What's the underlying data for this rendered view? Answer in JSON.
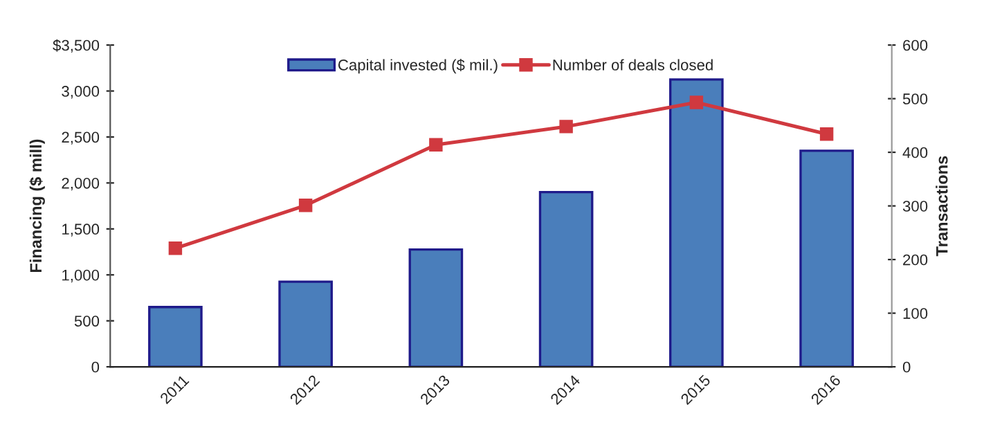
{
  "chart_data": {
    "type": "bar",
    "ylabel": "Financing ($ mill)",
    "y2label": "Transactions",
    "categories": [
      "2011",
      "2012",
      "2013",
      "2014",
      "2015",
      "2016"
    ],
    "series": [
      {
        "name": "Capital invested ($ mil.)",
        "color": "#4a7ebb",
        "values": [
          650,
          925,
          1275,
          1900,
          3125,
          2350
        ]
      },
      {
        "name": "Number of deals closed",
        "type": "line",
        "axis": "y2",
        "color": "#d0393f",
        "values": [
          221,
          301,
          414,
          448,
          493,
          434
        ]
      }
    ],
    "ylim": [
      0,
      3500
    ],
    "yticks": [
      0,
      {
        "value": 500,
        "label": "500"
      },
      {
        "value": 1000,
        "label": "1,000"
      },
      {
        "value": 1500,
        "label": "1,500"
      },
      {
        "value": 2000,
        "label": "2,000"
      },
      {
        "value": 2500,
        "label": "2,500"
      },
      {
        "value": 3000,
        "label": "3,000"
      },
      {
        "value": 3500,
        "label": "$3,500"
      }
    ],
    "y2lim": [
      0,
      600
    ],
    "y2ticks": [
      0,
      100,
      200,
      300,
      400,
      500,
      600
    ],
    "marker": "square",
    "line_style": "solid",
    "grid": false,
    "legend": "top"
  }
}
